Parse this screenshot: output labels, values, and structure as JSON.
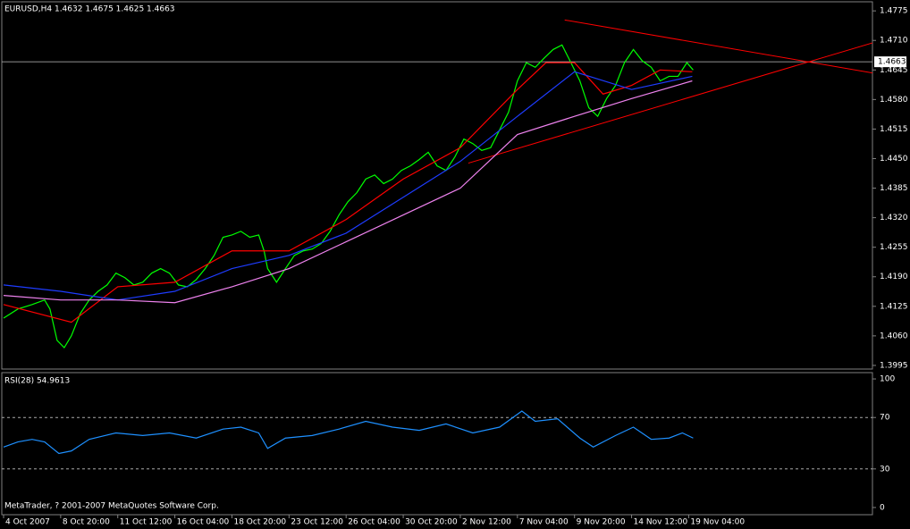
{
  "chart_data": [
    {
      "type": "line",
      "title": "EURUSD,H4  1.4632 1.4675 1.4625 1.4663",
      "xlim": [
        -0.5,
        243.5
      ],
      "ylim": [
        1.3987,
        1.4795
      ],
      "yticks": [
        {
          "value": 1.4775,
          "label": "1.4775"
        },
        {
          "value": 1.471,
          "label": "1.4710"
        },
        {
          "value": 1.4645,
          "label": "1.4645"
        },
        {
          "value": 1.458,
          "label": "1.4580"
        },
        {
          "value": 1.4515,
          "label": "1.4515"
        },
        {
          "value": 1.445,
          "label": "1.4450"
        },
        {
          "value": 1.4385,
          "label": "1.4385"
        },
        {
          "value": 1.432,
          "label": "1.4320"
        },
        {
          "value": 1.4255,
          "label": "1.4255"
        },
        {
          "value": 1.419,
          "label": "1.4190"
        },
        {
          "value": 1.4125,
          "label": "1.4125"
        },
        {
          "value": 1.406,
          "label": "1.4060"
        },
        {
          "value": 1.3995,
          "label": "1.3995"
        }
      ],
      "price_line": 1.4663,
      "series": [
        {
          "color": "#00ff00",
          "x": [
            0,
            4,
            8,
            11.5,
            13,
            15,
            17,
            19,
            21.5,
            24,
            26.5,
            29,
            31.5,
            34,
            36.5,
            39,
            41.5,
            44,
            46.5,
            49,
            51.5,
            54,
            56.5,
            59,
            61.5,
            64,
            66.5,
            69,
            71.5,
            73,
            74,
            76.5,
            79,
            81.5,
            84,
            86.5,
            89,
            91.5,
            94,
            96.5,
            99,
            101.5,
            104,
            106.5,
            109,
            111.5,
            114,
            116.5,
            119,
            121.5,
            124,
            126.5,
            129,
            131.5,
            134,
            136.5,
            139,
            141.5,
            144,
            146.5,
            149,
            151.5,
            154,
            156.5,
            159,
            161.5,
            164,
            166.5,
            169,
            171.5,
            174,
            176.5,
            179,
            181.5,
            184,
            186.5,
            189,
            191.5,
            193.25
          ],
          "values": [
            1.4099,
            1.4119,
            1.4129,
            1.4139,
            1.4119,
            1.405,
            1.4034,
            1.406,
            1.4109,
            1.4139,
            1.4158,
            1.4172,
            1.4198,
            1.4188,
            1.4172,
            1.4178,
            1.4198,
            1.4208,
            1.4198,
            1.4172,
            1.4168,
            1.4184,
            1.4208,
            1.4237,
            1.4277,
            1.4282,
            1.429,
            1.4277,
            1.4282,
            1.4247,
            1.4208,
            1.4178,
            1.4208,
            1.4237,
            1.4247,
            1.4251,
            1.4263,
            1.429,
            1.4326,
            1.4355,
            1.4375,
            1.4405,
            1.4414,
            1.4395,
            1.4405,
            1.4424,
            1.4434,
            1.4448,
            1.4464,
            1.4434,
            1.4424,
            1.4454,
            1.4493,
            1.4483,
            1.4468,
            1.4474,
            1.4513,
            1.4552,
            1.4621,
            1.4661,
            1.4651,
            1.4671,
            1.469,
            1.47,
            1.4661,
            1.4621,
            1.4562,
            1.4543,
            1.4582,
            1.4611,
            1.4661,
            1.469,
            1.4665,
            1.4651,
            1.4621,
            1.4631,
            1.4631,
            1.4661,
            1.4645
          ]
        },
        {
          "color": "#ff0000",
          "x": [
            0,
            19,
            32,
            48,
            64,
            80,
            96,
            112,
            128,
            144,
            152,
            160,
            168,
            176,
            184,
            193
          ],
          "values": [
            1.4129,
            1.409,
            1.4168,
            1.4178,
            1.4247,
            1.4247,
            1.4316,
            1.4405,
            1.4474,
            1.4602,
            1.4661,
            1.4661,
            1.4592,
            1.4611,
            1.4645,
            1.4641
          ]
        },
        {
          "color": "#1e3cff",
          "x": [
            0,
            16,
            32,
            48,
            64,
            80,
            96,
            112,
            128,
            144,
            160,
            176,
            193
          ],
          "values": [
            1.4172,
            1.4158,
            1.4139,
            1.4158,
            1.4208,
            1.4237,
            1.4286,
            1.4365,
            1.4444,
            1.4543,
            1.4641,
            1.4602,
            1.4631
          ]
        },
        {
          "color": "#ee82ee",
          "x": [
            0,
            16,
            32,
            48,
            64,
            80,
            96,
            112,
            128,
            144,
            160,
            176,
            193
          ],
          "values": [
            1.4149,
            1.4139,
            1.4139,
            1.4133,
            1.4168,
            1.4208,
            1.4267,
            1.4326,
            1.4385,
            1.4503,
            1.4543,
            1.4582,
            1.4621
          ]
        }
      ],
      "trendlines": [
        {
          "color": "#ff0000",
          "x": [
            157.25,
            253.5
          ],
          "values": [
            1.4755,
            1.4625
          ]
        },
        {
          "color": "#ff0000",
          "x": [
            130.25,
            253.5
          ],
          "values": [
            1.444,
            1.4728
          ]
        }
      ]
    },
    {
      "type": "line",
      "title": "RSI(28) 54.9613",
      "annotation": "MetaTrader, ? 2001-2007 MetaQuotes Software Corp.",
      "xlim": [
        -0.5,
        243.5
      ],
      "ylim": [
        -5.6,
        104.9
      ],
      "yticks": [
        100,
        70,
        30,
        0
      ],
      "levels": [
        70,
        30
      ],
      "xticks": [
        {
          "value": 0,
          "label": "4 Oct 2007"
        },
        {
          "value": 16,
          "label": "8 Oct 20:00"
        },
        {
          "value": 32,
          "label": "11 Oct 12:00"
        },
        {
          "value": 48,
          "label": "16 Oct 04:00"
        },
        {
          "value": 64,
          "label": "18 Oct 20:00"
        },
        {
          "value": 80,
          "label": "23 Oct 12:00"
        },
        {
          "value": 96,
          "label": "26 Oct 04:00"
        },
        {
          "value": 112,
          "label": "30 Oct 20:00"
        },
        {
          "value": 128,
          "label": "2 Nov 12:00"
        },
        {
          "value": 144,
          "label": "7 Nov 04:00"
        },
        {
          "value": 160,
          "label": "9 Nov 20:00"
        },
        {
          "value": 176,
          "label": "14 Nov 12:00"
        },
        {
          "value": 192,
          "label": "19 Nov 04:00"
        }
      ],
      "series": [
        {
          "color": "#1e90ff",
          "x": [
            0,
            4,
            8,
            11.5,
            15.5,
            19,
            24,
            31.5,
            39,
            46.5,
            54,
            61.5,
            66.5,
            71.5,
            74,
            79,
            86.5,
            94,
            101.5,
            109,
            116.5,
            124,
            131.5,
            139,
            145.25,
            149,
            155.25,
            161.5,
            165.25,
            171.5,
            176.5,
            181.5,
            186.5,
            190.25,
            193.25
          ],
          "values": [
            47,
            51,
            53,
            51,
            42,
            44,
            53,
            58,
            56,
            58,
            54,
            61,
            62.5,
            58,
            46,
            54,
            56,
            61,
            67,
            62.5,
            60,
            65,
            58,
            62.5,
            75,
            67,
            69,
            54,
            47,
            56,
            62.5,
            53,
            54,
            58,
            54
          ]
        }
      ]
    }
  ]
}
